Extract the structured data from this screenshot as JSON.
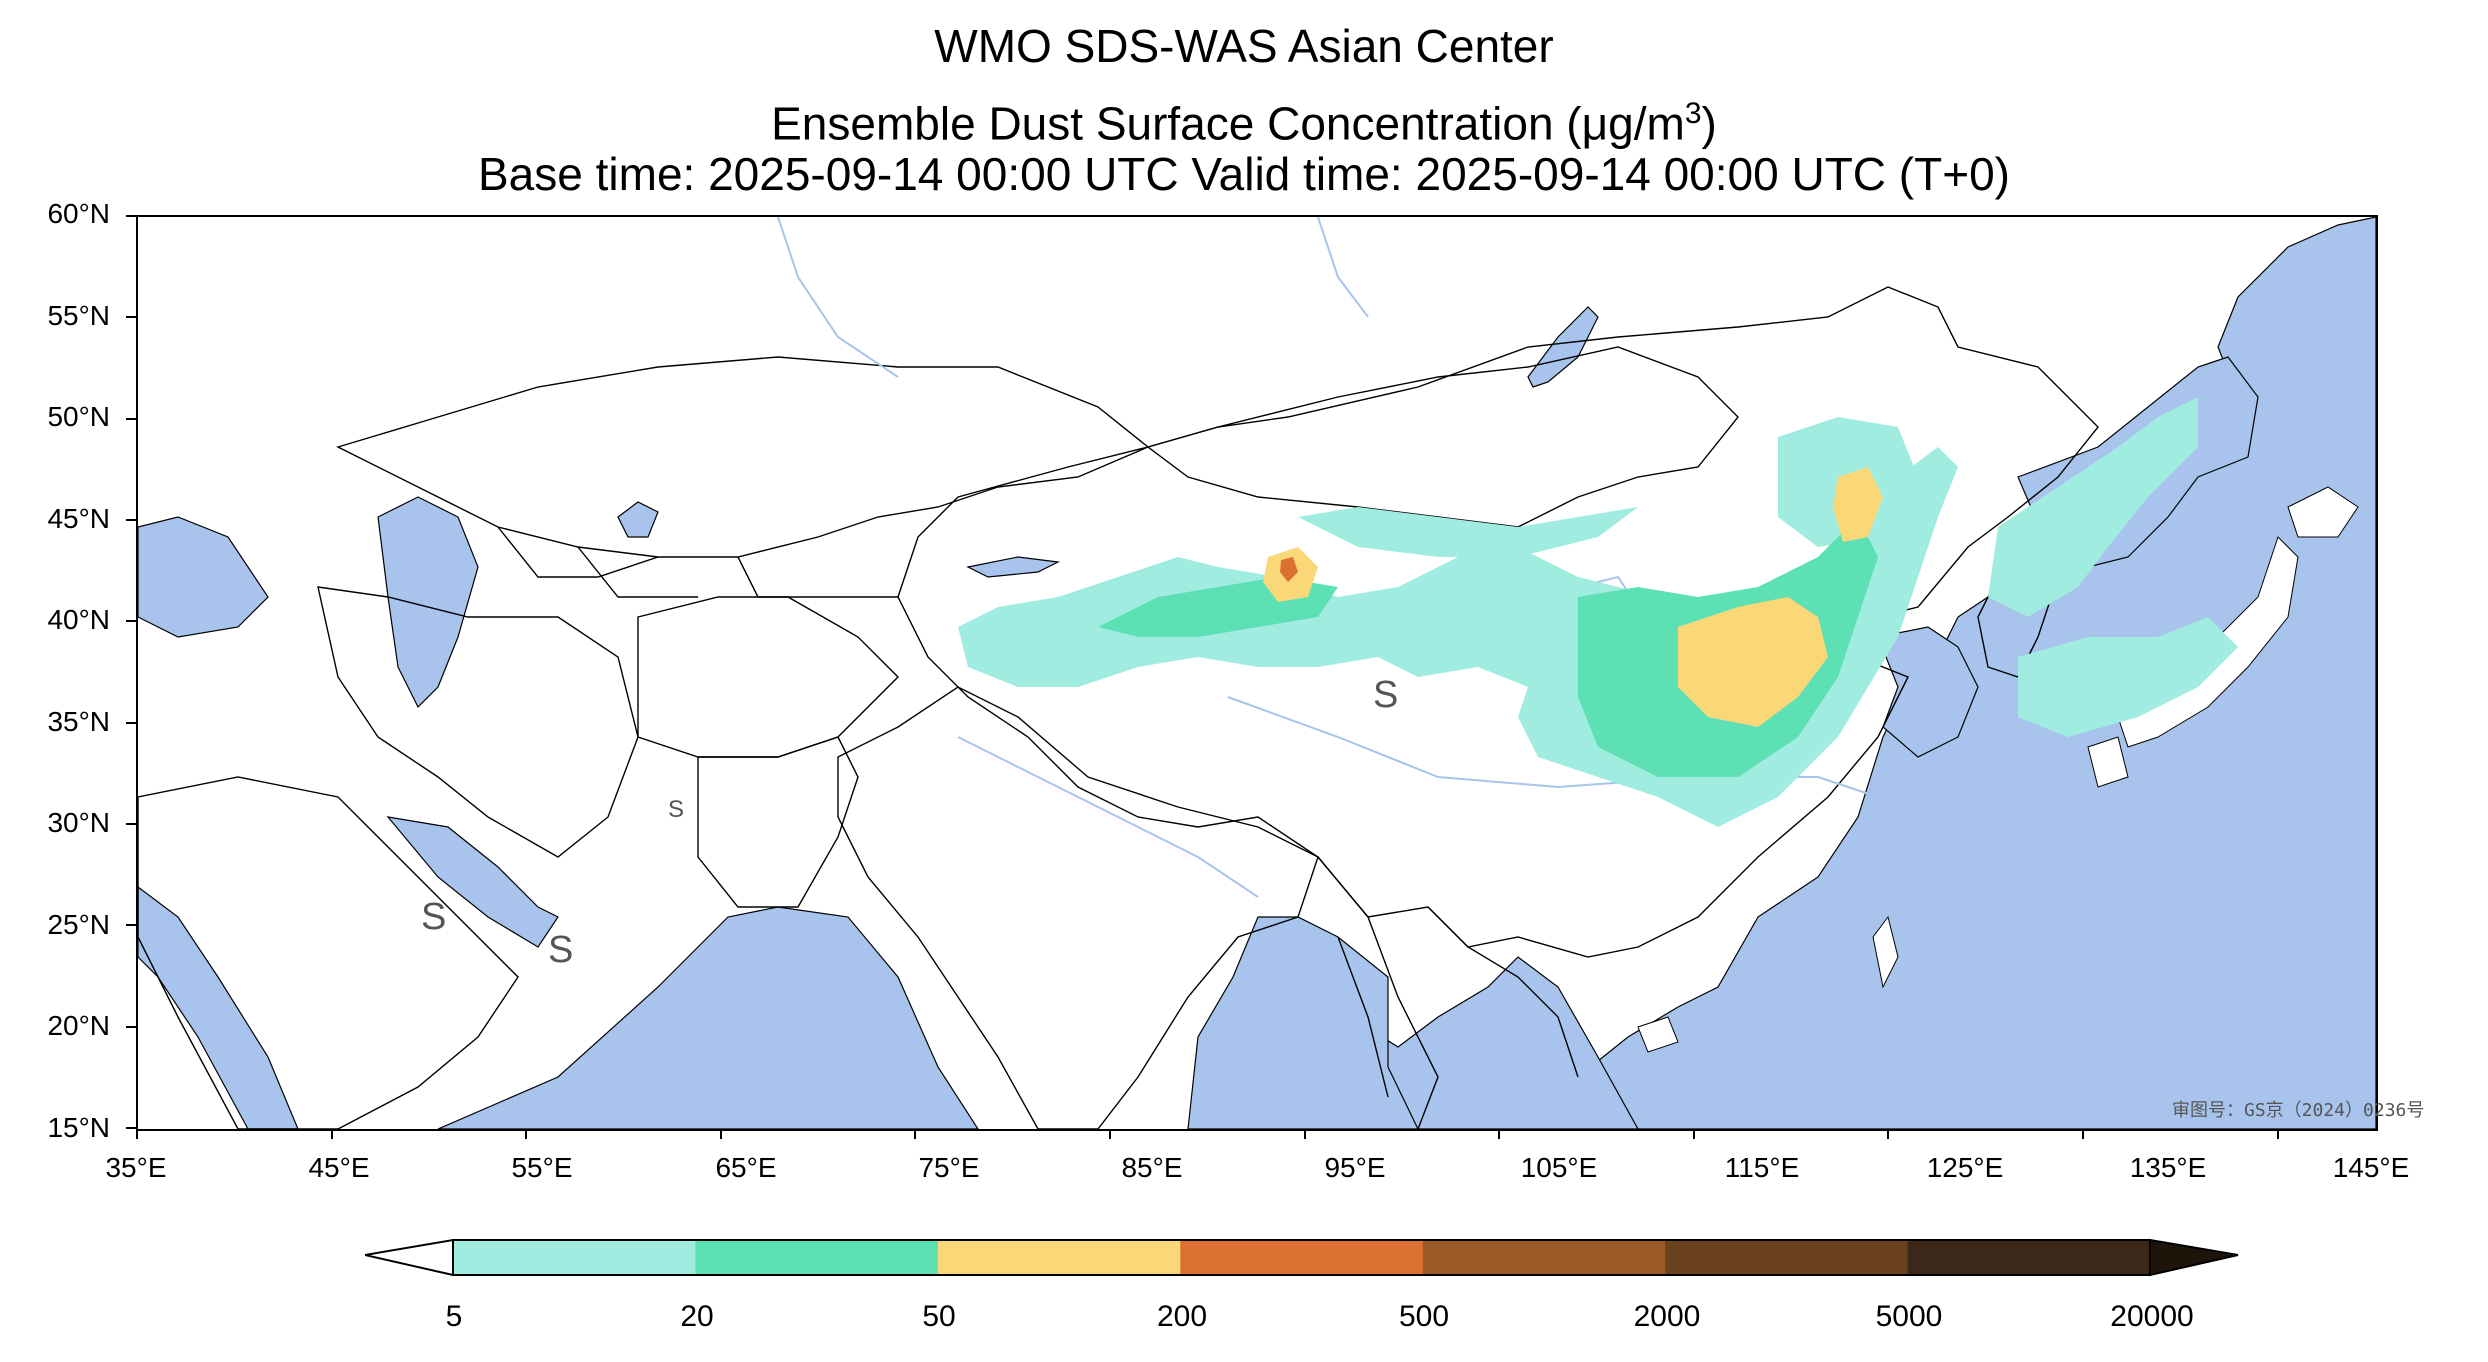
{
  "title": {
    "line1": "WMO SDS-WAS Asian Center",
    "line2_prefix": "Ensemble Dust Surface Concentration (",
    "line2_unit_mu": "μ",
    "line2_unit_rest": "g/m",
    "line2_sup": "3",
    "line2_suffix": ")",
    "line3": "Base time: 2025-09-14 00:00 UTC Valid time: 2025-09-14 00:00 UTC (T+0)"
  },
  "map": {
    "lon_range": [
      35,
      150
    ],
    "lat_range": [
      15,
      60
    ],
    "ocean_color": "#a8c4ec",
    "land_color": "#ffffff",
    "river_color": "#a8c4ec",
    "border_color": "#000000",
    "lat_ticks": [
      "60°N",
      "55°N",
      "50°N",
      "45°N",
      "40°N",
      "35°N",
      "30°N",
      "25°N",
      "20°N",
      "15°N"
    ],
    "lon_ticks": [
      "35°E",
      "45°E",
      "55°E",
      "65°E",
      "75°E",
      "85°E",
      "95°E",
      "105°E",
      "115°E",
      "125°E",
      "135°E",
      "145°E"
    ],
    "review_number": "审图号：GS京（2024）0236号",
    "markers": [
      "S",
      "S",
      "S",
      "S"
    ]
  },
  "colorbar": {
    "labels": [
      "5",
      "20",
      "50",
      "200",
      "500",
      "2000",
      "5000",
      "20000"
    ],
    "colors": [
      "#a0ece0",
      "#5ee0b5",
      "#fad878",
      "#dc7032",
      "#9c5a28",
      "#6a4220",
      "#3c2818",
      "#1e140a"
    ],
    "under_color": "#ffffff",
    "extend": "both"
  }
}
